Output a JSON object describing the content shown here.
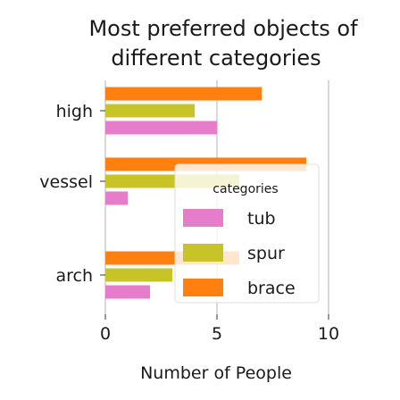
{
  "chart_data": {
    "type": "bar",
    "orientation": "horizontal",
    "title_lines": [
      "Most preferred objects of",
      "different categories"
    ],
    "xlabel": "Number of People",
    "ylabel": "",
    "categories": [
      "arch",
      "vessel",
      "high"
    ],
    "xlim": [
      0,
      10
    ],
    "xticks": [
      0,
      5,
      10
    ],
    "grid": true,
    "legend_title": "categories",
    "legend_position": "bottom-right",
    "series": [
      {
        "name": "tub",
        "color": "#e67dcb",
        "values": [
          2,
          1,
          5
        ]
      },
      {
        "name": "spur",
        "color": "#c8c428",
        "values": [
          3,
          6,
          4
        ]
      },
      {
        "name": "brace",
        "color": "#ff8010",
        "values": [
          6,
          9,
          7
        ]
      }
    ]
  }
}
